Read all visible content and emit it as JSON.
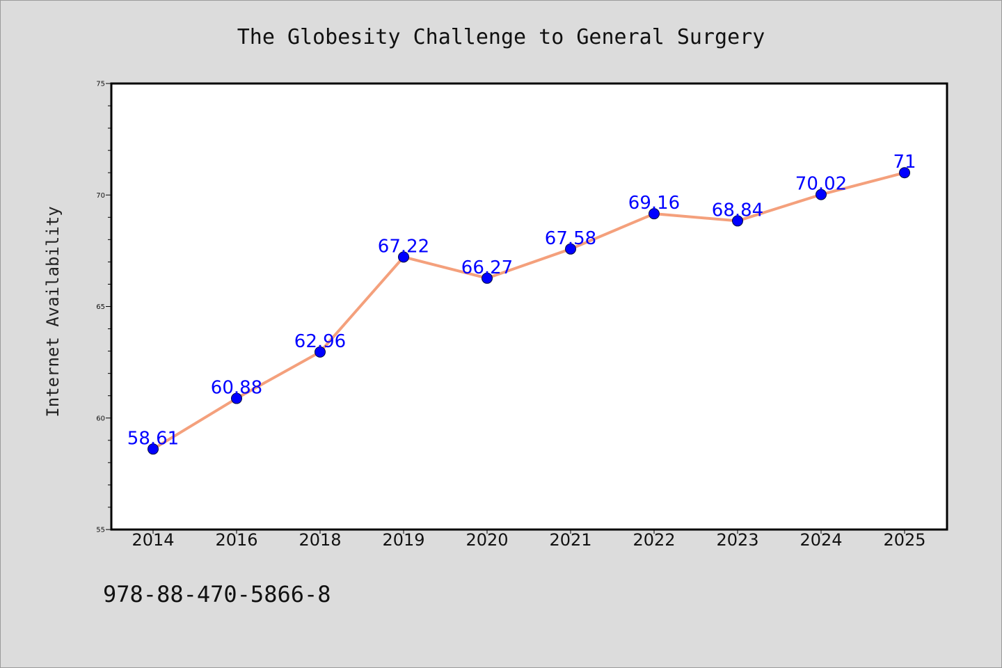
{
  "chart_data": {
    "type": "line",
    "title": "The Globesity Challenge to General Surgery",
    "xlabel": "",
    "ylabel": "Internet Availability",
    "categories": [
      "2014",
      "2016",
      "2018",
      "2019",
      "2020",
      "2021",
      "2022",
      "2023",
      "2024",
      "2025"
    ],
    "series": [
      {
        "values": [
          58.61,
          60.88,
          62.96,
          67.22,
          66.27,
          67.58,
          69.16,
          68.84,
          70.02,
          71
        ],
        "data_labels": [
          "58.61",
          "60.88",
          "62.96",
          "67.22",
          "66.27",
          "67.58",
          "69.16",
          "68.84",
          "70.02",
          "71"
        ],
        "line_color": "#f4a07c",
        "marker_color": "#0000ff"
      }
    ],
    "ylim": [
      55,
      75
    ],
    "yticks": [
      "55",
      "60",
      "65",
      "70",
      "75"
    ],
    "grid": false,
    "legend": "none",
    "background": "#dcdcdc",
    "plot_background": "#ffffff"
  },
  "footer_text": "978-88-470-5866-8"
}
